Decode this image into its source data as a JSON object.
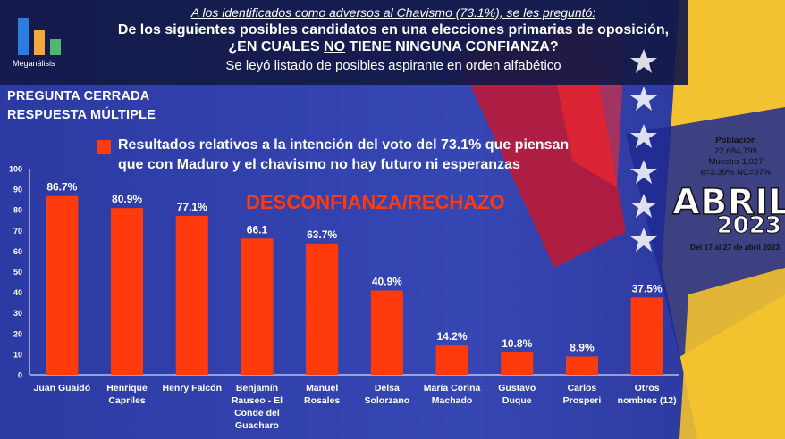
{
  "header": {
    "logo_name": "Meganálisis",
    "intro": "A los identificados como adversos al Chavismo (73.1%), se les preguntó:",
    "question_line1": "De los siguientes posibles candidatos en una elecciones primarias de oposición,",
    "question_line2_pre": "¿EN CUALES ",
    "question_line2_u": "NO",
    "question_line2_post": " TIENE NINGUNA CONFIANZA?",
    "note": "Se leyó listado de posibles aspirante en orden alfabético"
  },
  "question_type": {
    "line1": "PREGUNTA CERRADA",
    "line2": "RESPUESTA MÚLTIPLE"
  },
  "legend": {
    "line1": "Resultados relativos a la intención del voto del 73.1% que piensan",
    "line2": "que con Maduro y el chavismo no hay futuro ni esperanzas"
  },
  "watermark": "DESCONFIANZA/RECHAZO",
  "sidebar": {
    "poblacion_label": "Población",
    "poblacion_value": "22,684,799",
    "muestra": "Muestra 1,027",
    "error": "e=3.39%  NC=97%",
    "month": "ABRIL",
    "year": "2023",
    "dates": "Del 17 al 27 de abril 2023"
  },
  "colors": {
    "bar": "#ff3a0c",
    "background": "#2f3da6",
    "header": "#141946",
    "accent_yellow": "#f2c230"
  },
  "chart_data": {
    "type": "bar",
    "categories": [
      [
        "Juan Guaidó"
      ],
      [
        "Henrique",
        "Capriles"
      ],
      [
        "Henry Falcón"
      ],
      [
        "Benjamín",
        "Rauseo - El",
        "Conde del",
        "Guacharo"
      ],
      [
        "Manuel",
        "Rosales"
      ],
      [
        "Delsa",
        "Solorzano"
      ],
      [
        "María Corina",
        "Machado"
      ],
      [
        "Gustavo",
        "Duque"
      ],
      [
        "Carlos",
        "Prosperi"
      ],
      [
        "Otros",
        "nombres (12)"
      ]
    ],
    "values": [
      86.7,
      80.9,
      77.1,
      66.1,
      63.7,
      40.9,
      14.2,
      10.8,
      8.9,
      37.5
    ],
    "data_labels": [
      "86.7%",
      "80.9%",
      "77.1%",
      "66.1",
      "63.7%",
      "40.9%",
      "14.2%",
      "10.8%",
      "8.9%",
      "37.5%"
    ],
    "ylim": [
      0,
      100
    ],
    "yticks": [
      "0",
      "10",
      "20",
      "30",
      "40",
      "50",
      "60",
      "70",
      "80",
      "90",
      "100"
    ],
    "grid": false,
    "legend": "top"
  }
}
